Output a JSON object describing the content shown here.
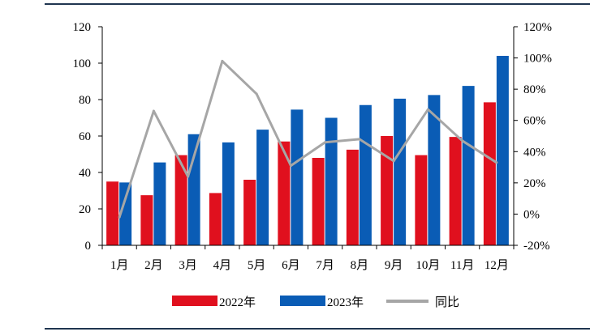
{
  "chart_data": {
    "type": "bar",
    "title": "",
    "categories": [
      "1月",
      "2月",
      "3月",
      "4月",
      "5月",
      "6月",
      "7月",
      "8月",
      "9月",
      "10月",
      "11月",
      "12月"
    ],
    "series": [
      {
        "name": "2022年",
        "type": "bar",
        "axis": "left",
        "color": "#e0101e",
        "values": [
          35,
          27.5,
          49.5,
          28.7,
          36,
          57,
          48,
          52.5,
          60,
          49.5,
          59.5,
          78.5
        ]
      },
      {
        "name": "2023年",
        "type": "bar",
        "axis": "left",
        "color": "#0a5cb5",
        "values": [
          34.5,
          45.5,
          61,
          56.5,
          63.5,
          74.5,
          70,
          77,
          80.5,
          82.5,
          87.5,
          104
        ]
      },
      {
        "name": "同比",
        "type": "line",
        "axis": "right",
        "color": "#a6a6a6",
        "values": [
          -2,
          66,
          24,
          98,
          77,
          31,
          46,
          48,
          34,
          67,
          47,
          33
        ]
      }
    ],
    "left_axis": {
      "min": 0,
      "max": 120,
      "ticks": [
        0,
        20,
        40,
        60,
        80,
        100,
        120
      ]
    },
    "right_axis": {
      "min": -20,
      "max": 120,
      "ticks": [
        -20,
        0,
        20,
        40,
        60,
        80,
        100,
        120
      ],
      "unit": "%"
    },
    "grid": false,
    "legend_position": "bottom"
  }
}
